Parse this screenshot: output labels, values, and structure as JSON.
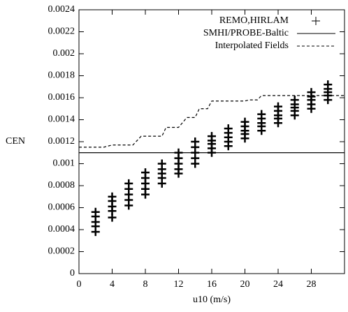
{
  "chart_data": {
    "type": "scatter",
    "xlabel": "u10 (m/s)",
    "ylabel": "CEN",
    "xlim": [
      0,
      32
    ],
    "ylim": [
      0,
      0.0024
    ],
    "xticks": [
      0,
      4,
      8,
      12,
      16,
      20,
      24,
      28
    ],
    "yticks": [
      0,
      0.0002,
      0.0004,
      0.0006,
      0.0008,
      0.001,
      0.0012,
      0.0014,
      0.0016,
      0.0018,
      0.002,
      0.0022,
      0.0024
    ],
    "legend": "upper right",
    "series": [
      {
        "name": "REMO,HIRLAM",
        "style": "points",
        "color": "#000000",
        "x": [
          2,
          2,
          2,
          2,
          2,
          4,
          4,
          4,
          4,
          4,
          6,
          6,
          6,
          6,
          6,
          8,
          8,
          8,
          8,
          8,
          10,
          10,
          10,
          10,
          10,
          12,
          12,
          12,
          12,
          12,
          14,
          14,
          14,
          14,
          14,
          16,
          16,
          16,
          16,
          16,
          18,
          18,
          18,
          18,
          18,
          20,
          20,
          20,
          20,
          20,
          22,
          22,
          22,
          22,
          22,
          24,
          24,
          24,
          24,
          24,
          26,
          26,
          26,
          26,
          26,
          28,
          28,
          28,
          28,
          28,
          30,
          30,
          30,
          30,
          30
        ],
        "values": [
          0.00038,
          0.00043,
          0.00047,
          0.00052,
          0.00056,
          0.00051,
          0.00057,
          0.00061,
          0.00066,
          0.0007,
          0.00062,
          0.00067,
          0.00072,
          0.00077,
          0.00082,
          0.00072,
          0.00077,
          0.00082,
          0.00087,
          0.00092,
          0.00082,
          0.00087,
          0.00091,
          0.00095,
          0.001,
          0.00091,
          0.00095,
          0.001,
          0.00105,
          0.0011,
          0.001,
          0.00105,
          0.0011,
          0.00115,
          0.0012,
          0.0011,
          0.00114,
          0.00118,
          0.00121,
          0.00125,
          0.00116,
          0.0012,
          0.00124,
          0.00128,
          0.00132,
          0.00123,
          0.00127,
          0.0013,
          0.00134,
          0.00138,
          0.0013,
          0.00134,
          0.00137,
          0.00141,
          0.00145,
          0.00137,
          0.00141,
          0.00144,
          0.00148,
          0.00152,
          0.00144,
          0.00148,
          0.00151,
          0.00154,
          0.00158,
          0.0015,
          0.00154,
          0.00158,
          0.00161,
          0.00165,
          0.00158,
          0.00162,
          0.00165,
          0.00168,
          0.00172
        ]
      },
      {
        "name": "SMHI/PROBE-Baltic",
        "style": "solid",
        "color": "#000000",
        "x": [
          0,
          32
        ],
        "values": [
          0.0011,
          0.0011
        ]
      },
      {
        "name": "Interpolated Fields",
        "style": "dashed",
        "color": "#000000",
        "x": [
          0,
          3,
          4,
          6.5,
          7.5,
          10,
          10.5,
          12,
          13,
          14,
          14.5,
          15.5,
          16,
          20,
          20.5,
          21.5,
          22,
          32
        ],
        "values": [
          0.00115,
          0.00115,
          0.00117,
          0.00117,
          0.00125,
          0.00125,
          0.00133,
          0.00133,
          0.00142,
          0.00142,
          0.0015,
          0.0015,
          0.00157,
          0.00157,
          0.00158,
          0.00158,
          0.00162,
          0.00162
        ]
      }
    ]
  }
}
